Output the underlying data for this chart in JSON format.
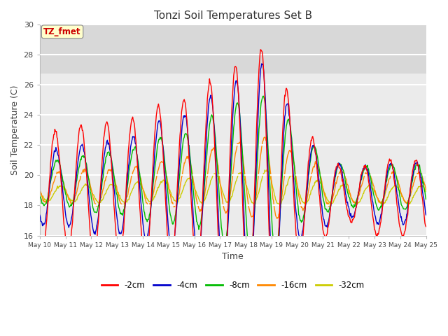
{
  "title": "Tonzi Soil Temperatures Set B",
  "xlabel": "Time",
  "ylabel": "Soil Temperature (C)",
  "ylim": [
    16,
    30
  ],
  "yticks": [
    16,
    18,
    20,
    22,
    24,
    26,
    28,
    30
  ],
  "xtick_labels": [
    "May 10",
    "May 11",
    "May 12",
    "May 13",
    "May 14",
    "May 15",
    "May 16",
    "May 17",
    "May 18",
    "May 19",
    "May 20",
    "May 21",
    "May 22",
    "May 23",
    "May 24",
    "May 25"
  ],
  "legend_labels": [
    "-2cm",
    "-4cm",
    "-8cm",
    "-16cm",
    "-32cm"
  ],
  "line_colors": [
    "#ff0000",
    "#0000cc",
    "#00bb00",
    "#ff8800",
    "#cccc00"
  ],
  "annotation_text": "TZ_fmet",
  "annotation_color": "#cc0000",
  "annotation_bg": "#ffffcc",
  "background_band_low": 26.8,
  "background_band_high": 30.2,
  "n_days": 15,
  "samples_per_day": 48,
  "figwidth": 6.4,
  "figheight": 4.8,
  "dpi": 100
}
